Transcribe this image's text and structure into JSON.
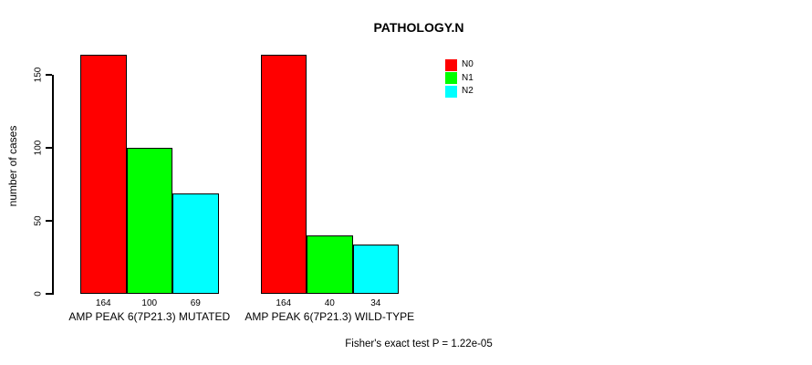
{
  "title": "PATHOLOGY.N",
  "y_axis": {
    "label": "number of cases",
    "tick_values": [
      0,
      50,
      100,
      150
    ]
  },
  "legend": {
    "position": "top-right",
    "items": [
      {
        "label": "N0",
        "color": "#ff0000"
      },
      {
        "label": "N1",
        "color": "#00ff00"
      },
      {
        "label": "N2",
        "color": "#00ffff"
      }
    ]
  },
  "footer_note": "Fisher's exact test P = 1.22e-05",
  "chart_data": {
    "type": "bar",
    "title": "PATHOLOGY.N",
    "xlabel": "",
    "ylabel": "number of cases",
    "ylim": [
      0,
      164
    ],
    "yticks": [
      0,
      50,
      100,
      150
    ],
    "grid": false,
    "legend_position": "top-right",
    "categories": [
      "AMP PEAK 6(7P21.3) MUTATED",
      "AMP PEAK 6(7P21.3) WILD-TYPE"
    ],
    "series": [
      {
        "name": "N0",
        "color": "#ff0000",
        "values": [
          164,
          164
        ]
      },
      {
        "name": "N1",
        "color": "#00ff00",
        "values": [
          100,
          40
        ]
      },
      {
        "name": "N2",
        "color": "#00ffff",
        "values": [
          69,
          34
        ]
      }
    ],
    "value_labels": [
      [
        164,
        100,
        69
      ],
      [
        164,
        40,
        34
      ]
    ],
    "annotation": "Fisher's exact test P = 1.22e-05"
  }
}
